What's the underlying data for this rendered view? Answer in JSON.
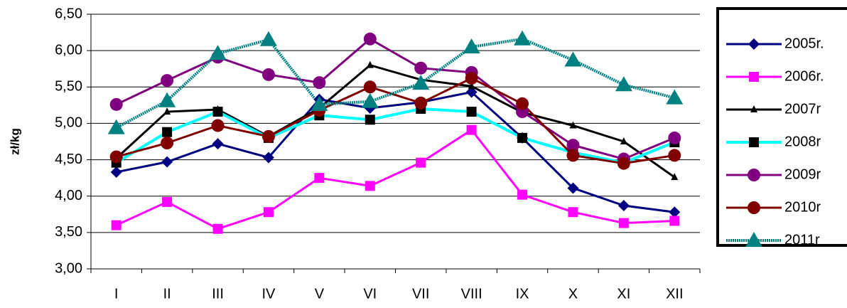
{
  "chart_data": {
    "type": "line",
    "y_label": "zł/kg",
    "categories": [
      "I",
      "II",
      "III",
      "IV",
      "V",
      "VI",
      "VII",
      "VIII",
      "IX",
      "X",
      "XI",
      "XII"
    ],
    "ylim": [
      3.0,
      6.5
    ],
    "yticks": [
      {
        "value": 3.0,
        "label": "3,00"
      },
      {
        "value": 3.5,
        "label": "3,50"
      },
      {
        "value": 4.0,
        "label": "4,00"
      },
      {
        "value": 4.5,
        "label": "4,50"
      },
      {
        "value": 5.0,
        "label": "5,00"
      },
      {
        "value": 5.5,
        "label": "5,50"
      },
      {
        "value": 6.0,
        "label": "6,00"
      },
      {
        "value": 6.5,
        "label": "6,50"
      }
    ],
    "grid": true,
    "legend": "right",
    "series": [
      {
        "name": "2005r.",
        "color": "#000080",
        "marker": "diamond",
        "marker_color": "#000080",
        "line_style": "solid",
        "values": [
          4.33,
          4.47,
          4.72,
          4.53,
          5.33,
          5.21,
          5.29,
          5.43,
          4.8,
          4.11,
          3.87,
          3.78
        ]
      },
      {
        "name": "2006r.",
        "color": "#ff00ff",
        "marker": "square",
        "marker_color": "#ff00ff",
        "line_style": "solid",
        "values": [
          3.6,
          3.92,
          3.55,
          3.78,
          4.25,
          4.14,
          4.46,
          4.91,
          4.02,
          3.78,
          3.63,
          3.66
        ]
      },
      {
        "name": "2007r",
        "color": "#000000",
        "marker": "triangle-small",
        "marker_color": "#000000",
        "line_style": "solid",
        "values": [
          4.52,
          5.16,
          5.19,
          4.82,
          5.21,
          5.8,
          5.6,
          5.51,
          5.15,
          4.97,
          4.75,
          4.26
        ]
      },
      {
        "name": "2008r",
        "color": "#00ffff",
        "marker": "square",
        "marker_color": "#000000",
        "line_style": "solid",
        "values": [
          4.46,
          4.88,
          5.16,
          4.8,
          5.11,
          5.05,
          5.2,
          5.16,
          4.8,
          4.6,
          4.46,
          4.74
        ]
      },
      {
        "name": "2009r",
        "color": "#800080",
        "marker": "circle",
        "marker_color": "#800080",
        "line_style": "solid",
        "values": [
          5.26,
          5.59,
          5.91,
          5.67,
          5.56,
          6.16,
          5.76,
          5.7,
          5.16,
          4.7,
          4.51,
          4.8
        ]
      },
      {
        "name": "2010r",
        "color": "#800000",
        "marker": "circle",
        "marker_color": "#800000",
        "line_style": "solid",
        "values": [
          4.54,
          4.73,
          4.97,
          4.82,
          5.18,
          5.5,
          5.28,
          5.62,
          5.27,
          4.56,
          4.45,
          4.56
        ]
      },
      {
        "name": "2011r",
        "color": "#008080",
        "marker": "triangle",
        "marker_color": "#008080",
        "line_style": "dotted",
        "values": [
          4.94,
          5.31,
          5.96,
          6.15,
          5.26,
          5.3,
          5.55,
          6.05,
          6.16,
          5.87,
          5.53,
          5.35
        ]
      }
    ]
  }
}
